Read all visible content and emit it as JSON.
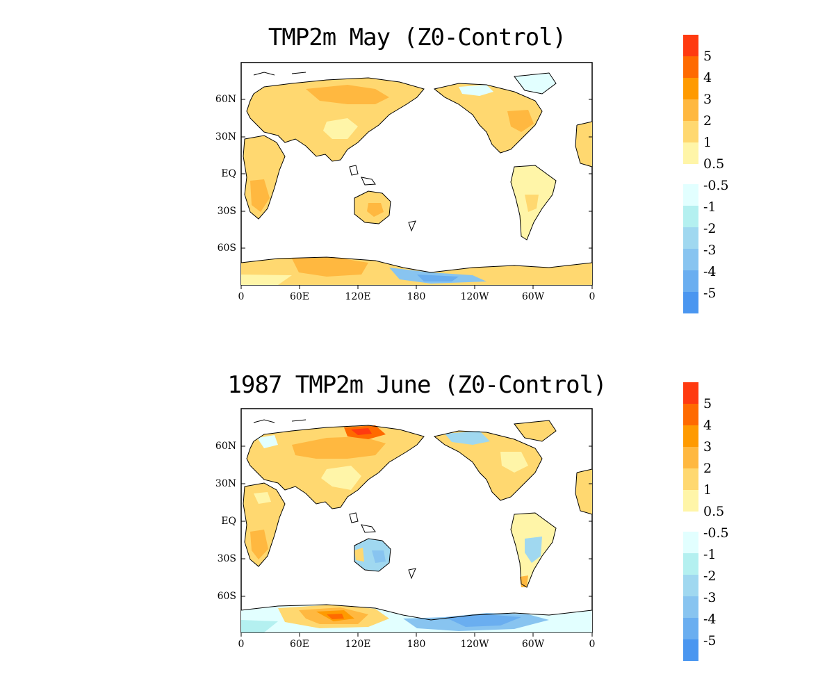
{
  "maps": [
    {
      "title": "TMP2m May (Z0-Control)",
      "lat_ticks": [
        "60N",
        "30N",
        "EQ",
        "30S",
        "60S"
      ],
      "lon_ticks": [
        "0",
        "60E",
        "120E",
        "180",
        "120W",
        "60W",
        "0"
      ],
      "colorbar_labels": [
        "5",
        "4",
        "3",
        "2",
        "1",
        "0.5",
        "-0.5",
        "-1",
        "-2",
        "-3",
        "-4",
        "-5"
      ]
    },
    {
      "title": "1987 TMP2m June (Z0-Control)",
      "lat_ticks": [
        "60N",
        "30N",
        "EQ",
        "30S",
        "60S"
      ],
      "lon_ticks": [
        "0",
        "60E",
        "120E",
        "180",
        "120W",
        "60W",
        "0"
      ],
      "colorbar_labels": [
        "5",
        "4",
        "3",
        "2",
        "1",
        "0.5",
        "-0.5",
        "-1",
        "-2",
        "-3",
        "-4",
        "-5"
      ]
    }
  ],
  "colors": {
    "warm": [
      "#ff3a10",
      "#ff6a00",
      "#ff9a00",
      "#ffb840",
      "#ffd870",
      "#fff5a8"
    ],
    "cool": [
      "#e2ffff",
      "#b4f0f0",
      "#a0d8f0",
      "#88c4f0",
      "#6aaef0",
      "#4a96f0"
    ],
    "land_outline": "#000000"
  }
}
